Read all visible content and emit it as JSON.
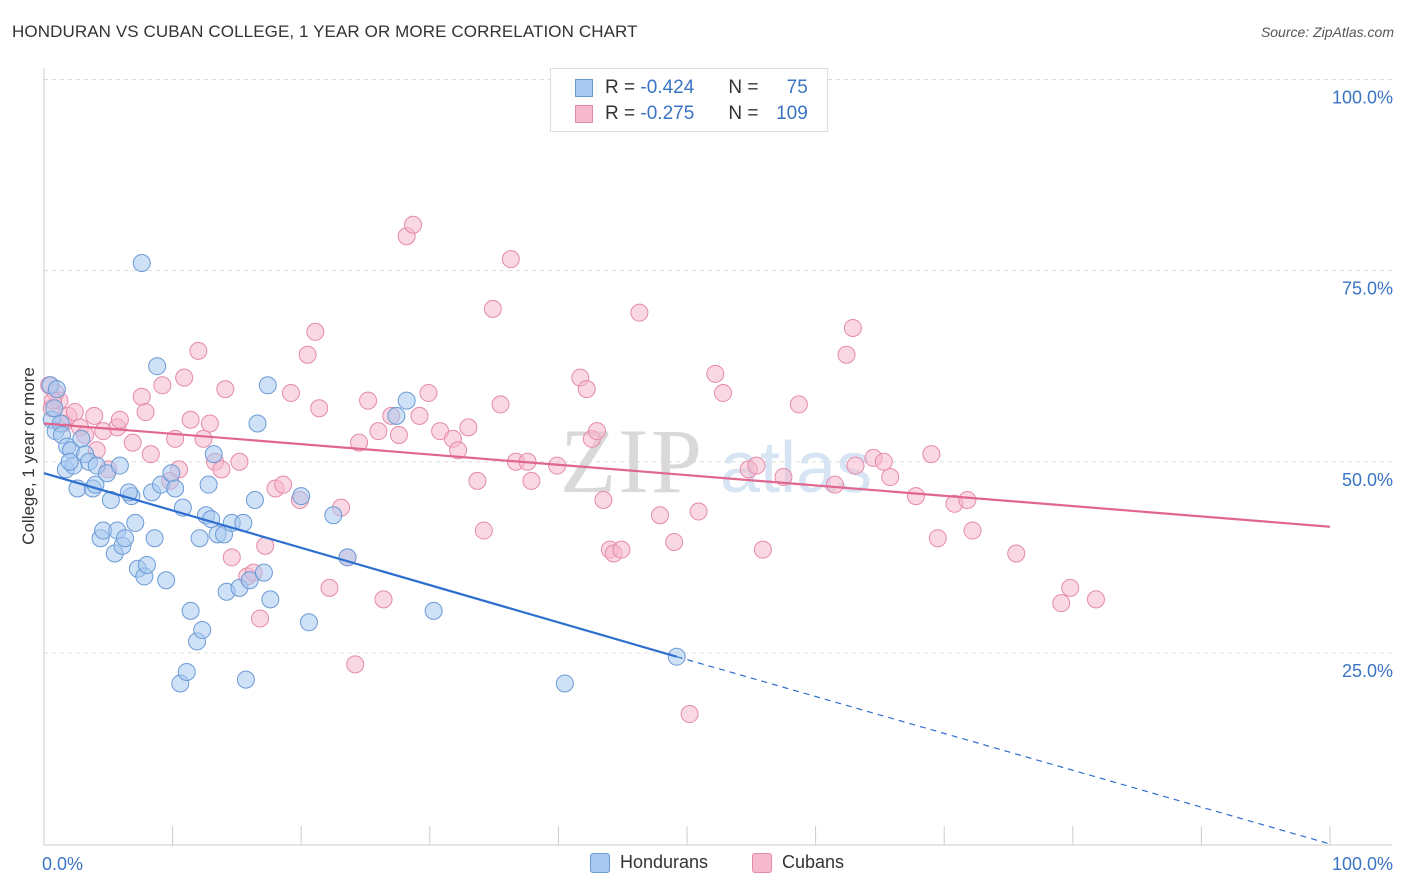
{
  "header": {
    "title": "HONDURAN VS CUBAN COLLEGE, 1 YEAR OR MORE CORRELATION CHART",
    "source": "Source: ZipAtlas.com"
  },
  "legend": {
    "r_label": "R =",
    "n_label": "N =",
    "rows": [
      {
        "r": "-0.424",
        "n": "75"
      },
      {
        "r": "-0.275",
        "n": "109"
      }
    ]
  },
  "watermark": {
    "zip": "ZIP",
    "atlas": "atlas"
  },
  "bottom_legend": [
    "Hondurans",
    "Cubans"
  ],
  "colors": {
    "honduran_fill": "#a8c8f0",
    "honduran_stroke": "#6a9ad6",
    "honduran_line": "#2d6fcf",
    "cuban_fill": "#f5b8cc",
    "cuban_stroke": "#e58aa8",
    "cuban_line": "#e06690",
    "tick_text": "#3a74c4"
  },
  "chart_data": {
    "type": "scatter",
    "title": "HONDURAN VS CUBAN COLLEGE, 1 YEAR OR MORE CORRELATION CHART",
    "xlabel": "",
    "ylabel": "College, 1 year or more",
    "xlim": [
      0,
      100
    ],
    "ylim": [
      0,
      105
    ],
    "x_tick_labels": [
      "0.0%",
      "100.0%"
    ],
    "y_ticks": [
      25,
      50,
      75,
      100
    ],
    "y_tick_labels": [
      "25.0%",
      "50.0%",
      "75.0%",
      "100.0%"
    ],
    "series": [
      {
        "name": "Hondurans",
        "r": -0.424,
        "n": 75,
        "trend": {
          "x0": 0,
          "y0": 48.5,
          "x1": 49.2,
          "y1": 24.5,
          "dash_to_x": 100,
          "dash_to_y": 0
        },
        "points": [
          [
            0.5,
            60
          ],
          [
            0.6,
            55.5
          ],
          [
            0.9,
            54
          ],
          [
            1.0,
            59.5
          ],
          [
            1.3,
            55
          ],
          [
            1.4,
            53.5
          ],
          [
            1.7,
            49
          ],
          [
            1.8,
            52
          ],
          [
            2.1,
            51.5
          ],
          [
            2.3,
            49.5
          ],
          [
            2.6,
            46.5
          ],
          [
            2.9,
            53
          ],
          [
            3.2,
            51
          ],
          [
            3.5,
            50
          ],
          [
            3.8,
            46.5
          ],
          [
            4.0,
            47
          ],
          [
            4.1,
            49.5
          ],
          [
            4.4,
            40
          ],
          [
            4.6,
            41
          ],
          [
            4.9,
            48.5
          ],
          [
            5.2,
            45
          ],
          [
            5.5,
            38
          ],
          [
            5.7,
            41
          ],
          [
            5.9,
            49.5
          ],
          [
            6.1,
            39
          ],
          [
            6.3,
            40
          ],
          [
            6.8,
            45.5
          ],
          [
            7.1,
            42
          ],
          [
            7.3,
            36
          ],
          [
            7.6,
            76
          ],
          [
            7.8,
            35
          ],
          [
            8.0,
            36.5
          ],
          [
            8.4,
            46
          ],
          [
            8.6,
            40
          ],
          [
            8.8,
            62.5
          ],
          [
            9.1,
            47
          ],
          [
            9.5,
            34.5
          ],
          [
            9.9,
            48.5
          ],
          [
            10.2,
            46.5
          ],
          [
            10.6,
            21
          ],
          [
            10.8,
            44
          ],
          [
            11.1,
            22.5
          ],
          [
            11.4,
            30.5
          ],
          [
            11.9,
            26.5
          ],
          [
            12.1,
            40
          ],
          [
            12.3,
            28
          ],
          [
            12.6,
            43
          ],
          [
            12.8,
            47
          ],
          [
            13.0,
            42.5
          ],
          [
            13.2,
            51
          ],
          [
            13.5,
            40.5
          ],
          [
            14.0,
            40.5
          ],
          [
            14.2,
            33
          ],
          [
            14.6,
            42
          ],
          [
            15.2,
            33.5
          ],
          [
            15.5,
            42
          ],
          [
            15.7,
            21.5
          ],
          [
            16.0,
            34.5
          ],
          [
            16.4,
            45
          ],
          [
            16.6,
            55
          ],
          [
            17.1,
            35.5
          ],
          [
            17.4,
            60
          ],
          [
            17.6,
            32
          ],
          [
            20.0,
            45.5
          ],
          [
            20.6,
            29
          ],
          [
            22.5,
            43
          ],
          [
            23.6,
            37.5
          ],
          [
            27.4,
            56
          ],
          [
            28.2,
            58
          ],
          [
            30.3,
            30.5
          ],
          [
            40.5,
            21
          ],
          [
            49.2,
            24.5
          ],
          [
            0.8,
            57
          ],
          [
            2.0,
            50
          ],
          [
            6.6,
            46
          ]
        ]
      },
      {
        "name": "Cubans",
        "r": -0.275,
        "n": 109,
        "trend": {
          "x0": 0,
          "y0": 55,
          "x1": 100,
          "y1": 41.5
        },
        "points": [
          [
            0.4,
            60
          ],
          [
            0.6,
            57
          ],
          [
            0.9,
            59
          ],
          [
            1.2,
            58
          ],
          [
            1.5,
            55
          ],
          [
            1.9,
            56
          ],
          [
            2.4,
            56.5
          ],
          [
            2.8,
            54.5
          ],
          [
            3.2,
            53.5
          ],
          [
            3.9,
            56
          ],
          [
            4.1,
            51.5
          ],
          [
            4.6,
            54
          ],
          [
            5.0,
            49
          ],
          [
            5.7,
            54.5
          ],
          [
            5.9,
            55.5
          ],
          [
            6.9,
            52.5
          ],
          [
            7.6,
            58.5
          ],
          [
            7.9,
            56.5
          ],
          [
            8.3,
            51
          ],
          [
            9.2,
            60
          ],
          [
            9.8,
            47.5
          ],
          [
            10.2,
            53
          ],
          [
            10.5,
            49
          ],
          [
            10.9,
            61
          ],
          [
            11.4,
            55.5
          ],
          [
            12.0,
            64.5
          ],
          [
            12.4,
            53
          ],
          [
            12.9,
            55
          ],
          [
            13.3,
            50
          ],
          [
            13.8,
            49
          ],
          [
            14.1,
            59.5
          ],
          [
            14.6,
            37.5
          ],
          [
            15.2,
            50
          ],
          [
            15.8,
            35
          ],
          [
            16.3,
            35.5
          ],
          [
            16.8,
            29.5
          ],
          [
            17.2,
            39
          ],
          [
            18.0,
            46.5
          ],
          [
            18.6,
            47
          ],
          [
            19.2,
            59
          ],
          [
            19.9,
            45
          ],
          [
            20.5,
            64
          ],
          [
            21.1,
            67
          ],
          [
            21.4,
            57
          ],
          [
            22.2,
            33.5
          ],
          [
            23.1,
            44
          ],
          [
            23.6,
            37.5
          ],
          [
            24.2,
            23.5
          ],
          [
            24.5,
            52.5
          ],
          [
            25.2,
            58
          ],
          [
            26.0,
            54
          ],
          [
            26.4,
            32
          ],
          [
            27.0,
            56
          ],
          [
            27.6,
            53.5
          ],
          [
            28.2,
            79.5
          ],
          [
            28.7,
            81
          ],
          [
            29.2,
            56
          ],
          [
            29.9,
            59
          ],
          [
            30.8,
            54
          ],
          [
            31.8,
            53
          ],
          [
            32.2,
            51.5
          ],
          [
            33.0,
            54.5
          ],
          [
            33.7,
            47.5
          ],
          [
            34.2,
            41
          ],
          [
            34.9,
            70
          ],
          [
            35.5,
            57.5
          ],
          [
            36.3,
            76.5
          ],
          [
            36.7,
            50
          ],
          [
            37.6,
            50
          ],
          [
            37.9,
            47.5
          ],
          [
            39.9,
            49.5
          ],
          [
            41.7,
            61
          ],
          [
            42.2,
            59.5
          ],
          [
            42.6,
            53
          ],
          [
            43.0,
            54
          ],
          [
            43.5,
            45
          ],
          [
            44.0,
            38.5
          ],
          [
            44.3,
            38
          ],
          [
            44.9,
            38.5
          ],
          [
            46.3,
            69.5
          ],
          [
            47.9,
            43
          ],
          [
            49.0,
            39.5
          ],
          [
            50.2,
            17
          ],
          [
            50.9,
            43.5
          ],
          [
            52.2,
            61.5
          ],
          [
            52.8,
            59
          ],
          [
            54.8,
            49
          ],
          [
            55.4,
            49.5
          ],
          [
            55.9,
            38.5
          ],
          [
            57.5,
            48
          ],
          [
            58.7,
            57.5
          ],
          [
            61.5,
            47
          ],
          [
            62.4,
            64
          ],
          [
            62.9,
            67.5
          ],
          [
            63.1,
            49.5
          ],
          [
            64.5,
            50.5
          ],
          [
            65.3,
            50
          ],
          [
            65.8,
            48
          ],
          [
            67.8,
            45.5
          ],
          [
            69.0,
            51
          ],
          [
            69.5,
            40
          ],
          [
            70.8,
            44.5
          ],
          [
            71.8,
            45
          ],
          [
            72.2,
            41
          ],
          [
            75.6,
            38
          ],
          [
            79.1,
            31.5
          ],
          [
            79.8,
            33.5
          ],
          [
            81.8,
            32
          ],
          [
            0.7,
            58
          ]
        ]
      }
    ]
  }
}
